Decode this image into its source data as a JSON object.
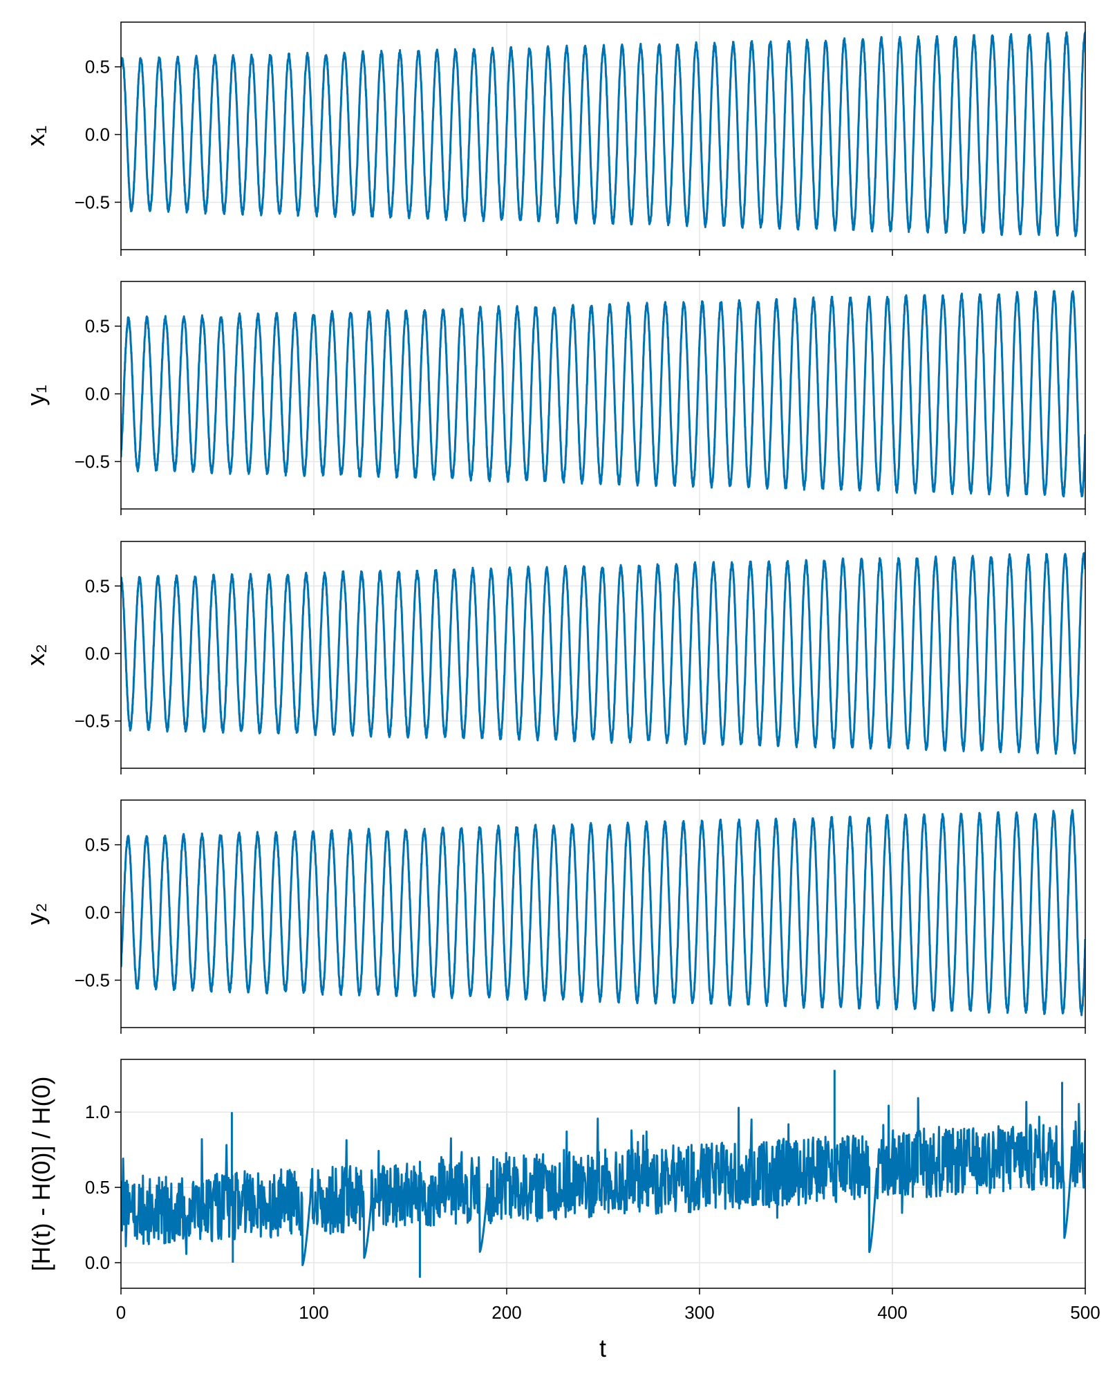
{
  "figure": {
    "xlabel": "t"
  },
  "chart_data": [
    {
      "type": "line",
      "ylabel": "x₁",
      "xlim": [
        0,
        500
      ],
      "ylim": [
        -0.85,
        0.83
      ],
      "xticks": [
        0,
        100,
        200,
        300,
        400,
        500
      ],
      "yticks": [
        -0.5,
        0.0,
        0.5
      ],
      "ytick_labels": [
        "−0.5",
        "0.0",
        "0.5"
      ],
      "grid": true,
      "series": [
        {
          "kind": "oscillation",
          "period": 9.6,
          "amplitude_start": 0.55,
          "amplitude_end": 0.74,
          "start_value": 0.5,
          "color": "#0072b2"
        }
      ]
    },
    {
      "type": "line",
      "ylabel": "y₁",
      "xlim": [
        0,
        500
      ],
      "ylim": [
        -0.85,
        0.83
      ],
      "xticks": [
        0,
        100,
        200,
        300,
        400,
        500
      ],
      "yticks": [
        -0.5,
        0.0,
        0.5
      ],
      "ytick_labels": [
        "−0.5",
        "0.0",
        "0.5"
      ],
      "grid": true,
      "series": [
        {
          "kind": "oscillation",
          "period": 9.6,
          "amplitude_start": 0.55,
          "amplitude_end": 0.75,
          "start_value": -0.45,
          "color": "#0072b2"
        }
      ]
    },
    {
      "type": "line",
      "ylabel": "x₂",
      "xlim": [
        0,
        500
      ],
      "ylim": [
        -0.85,
        0.83
      ],
      "xticks": [
        0,
        100,
        200,
        300,
        400,
        500
      ],
      "yticks": [
        -0.5,
        0.0,
        0.5
      ],
      "ytick_labels": [
        "−0.5",
        "0.0",
        "0.5"
      ],
      "grid": true,
      "series": [
        {
          "kind": "oscillation",
          "period": 9.6,
          "amplitude_start": 0.55,
          "amplitude_end": 0.73,
          "start_value": 0.55,
          "color": "#0072b2"
        }
      ]
    },
    {
      "type": "line",
      "ylabel": "y₂",
      "xlim": [
        0,
        500
      ],
      "ylim": [
        -0.85,
        0.83
      ],
      "xticks": [
        0,
        100,
        200,
        300,
        400,
        500
      ],
      "yticks": [
        -0.5,
        0.0,
        0.5
      ],
      "ytick_labels": [
        "−0.5",
        "0.0",
        "0.5"
      ],
      "grid": true,
      "series": [
        {
          "kind": "oscillation",
          "period": 9.6,
          "amplitude_start": 0.55,
          "amplitude_end": 0.74,
          "start_value": -0.4,
          "color": "#0072b2"
        }
      ]
    },
    {
      "type": "line",
      "ylabel": "[H(t) - H(0)] / H(0)",
      "xlabel": "t",
      "xlim": [
        0,
        500
      ],
      "ylim": [
        -0.17,
        1.35
      ],
      "xticks": [
        0,
        100,
        200,
        300,
        400,
        500
      ],
      "xtick_labels": [
        "0",
        "100",
        "200",
        "300",
        "400",
        "500"
      ],
      "yticks": [
        0.0,
        0.5,
        1.0
      ],
      "ytick_labels": [
        "0.0",
        "0.5",
        "1.0"
      ],
      "grid": true,
      "series": [
        {
          "kind": "noisy-drift",
          "color": "#0072b2",
          "mean_start": 0.33,
          "mean_end": 0.72,
          "notable_points": [
            {
              "x": 58,
              "y": 0.0
            },
            {
              "x": 57.5,
              "y": 1.0
            },
            {
              "x": 155,
              "y": -0.1
            },
            {
              "x": 370,
              "y": 1.28
            },
            {
              "x": 388,
              "y": 0.08
            },
            {
              "x": 488,
              "y": 1.2
            }
          ],
          "resets": [
            {
              "x": 94,
              "y": -0.02
            },
            {
              "x": 126,
              "y": 0.03
            },
            {
              "x": 186,
              "y": 0.07
            },
            {
              "x": 388,
              "y": 0.07
            },
            {
              "x": 489,
              "y": 0.16
            }
          ]
        }
      ]
    }
  ]
}
